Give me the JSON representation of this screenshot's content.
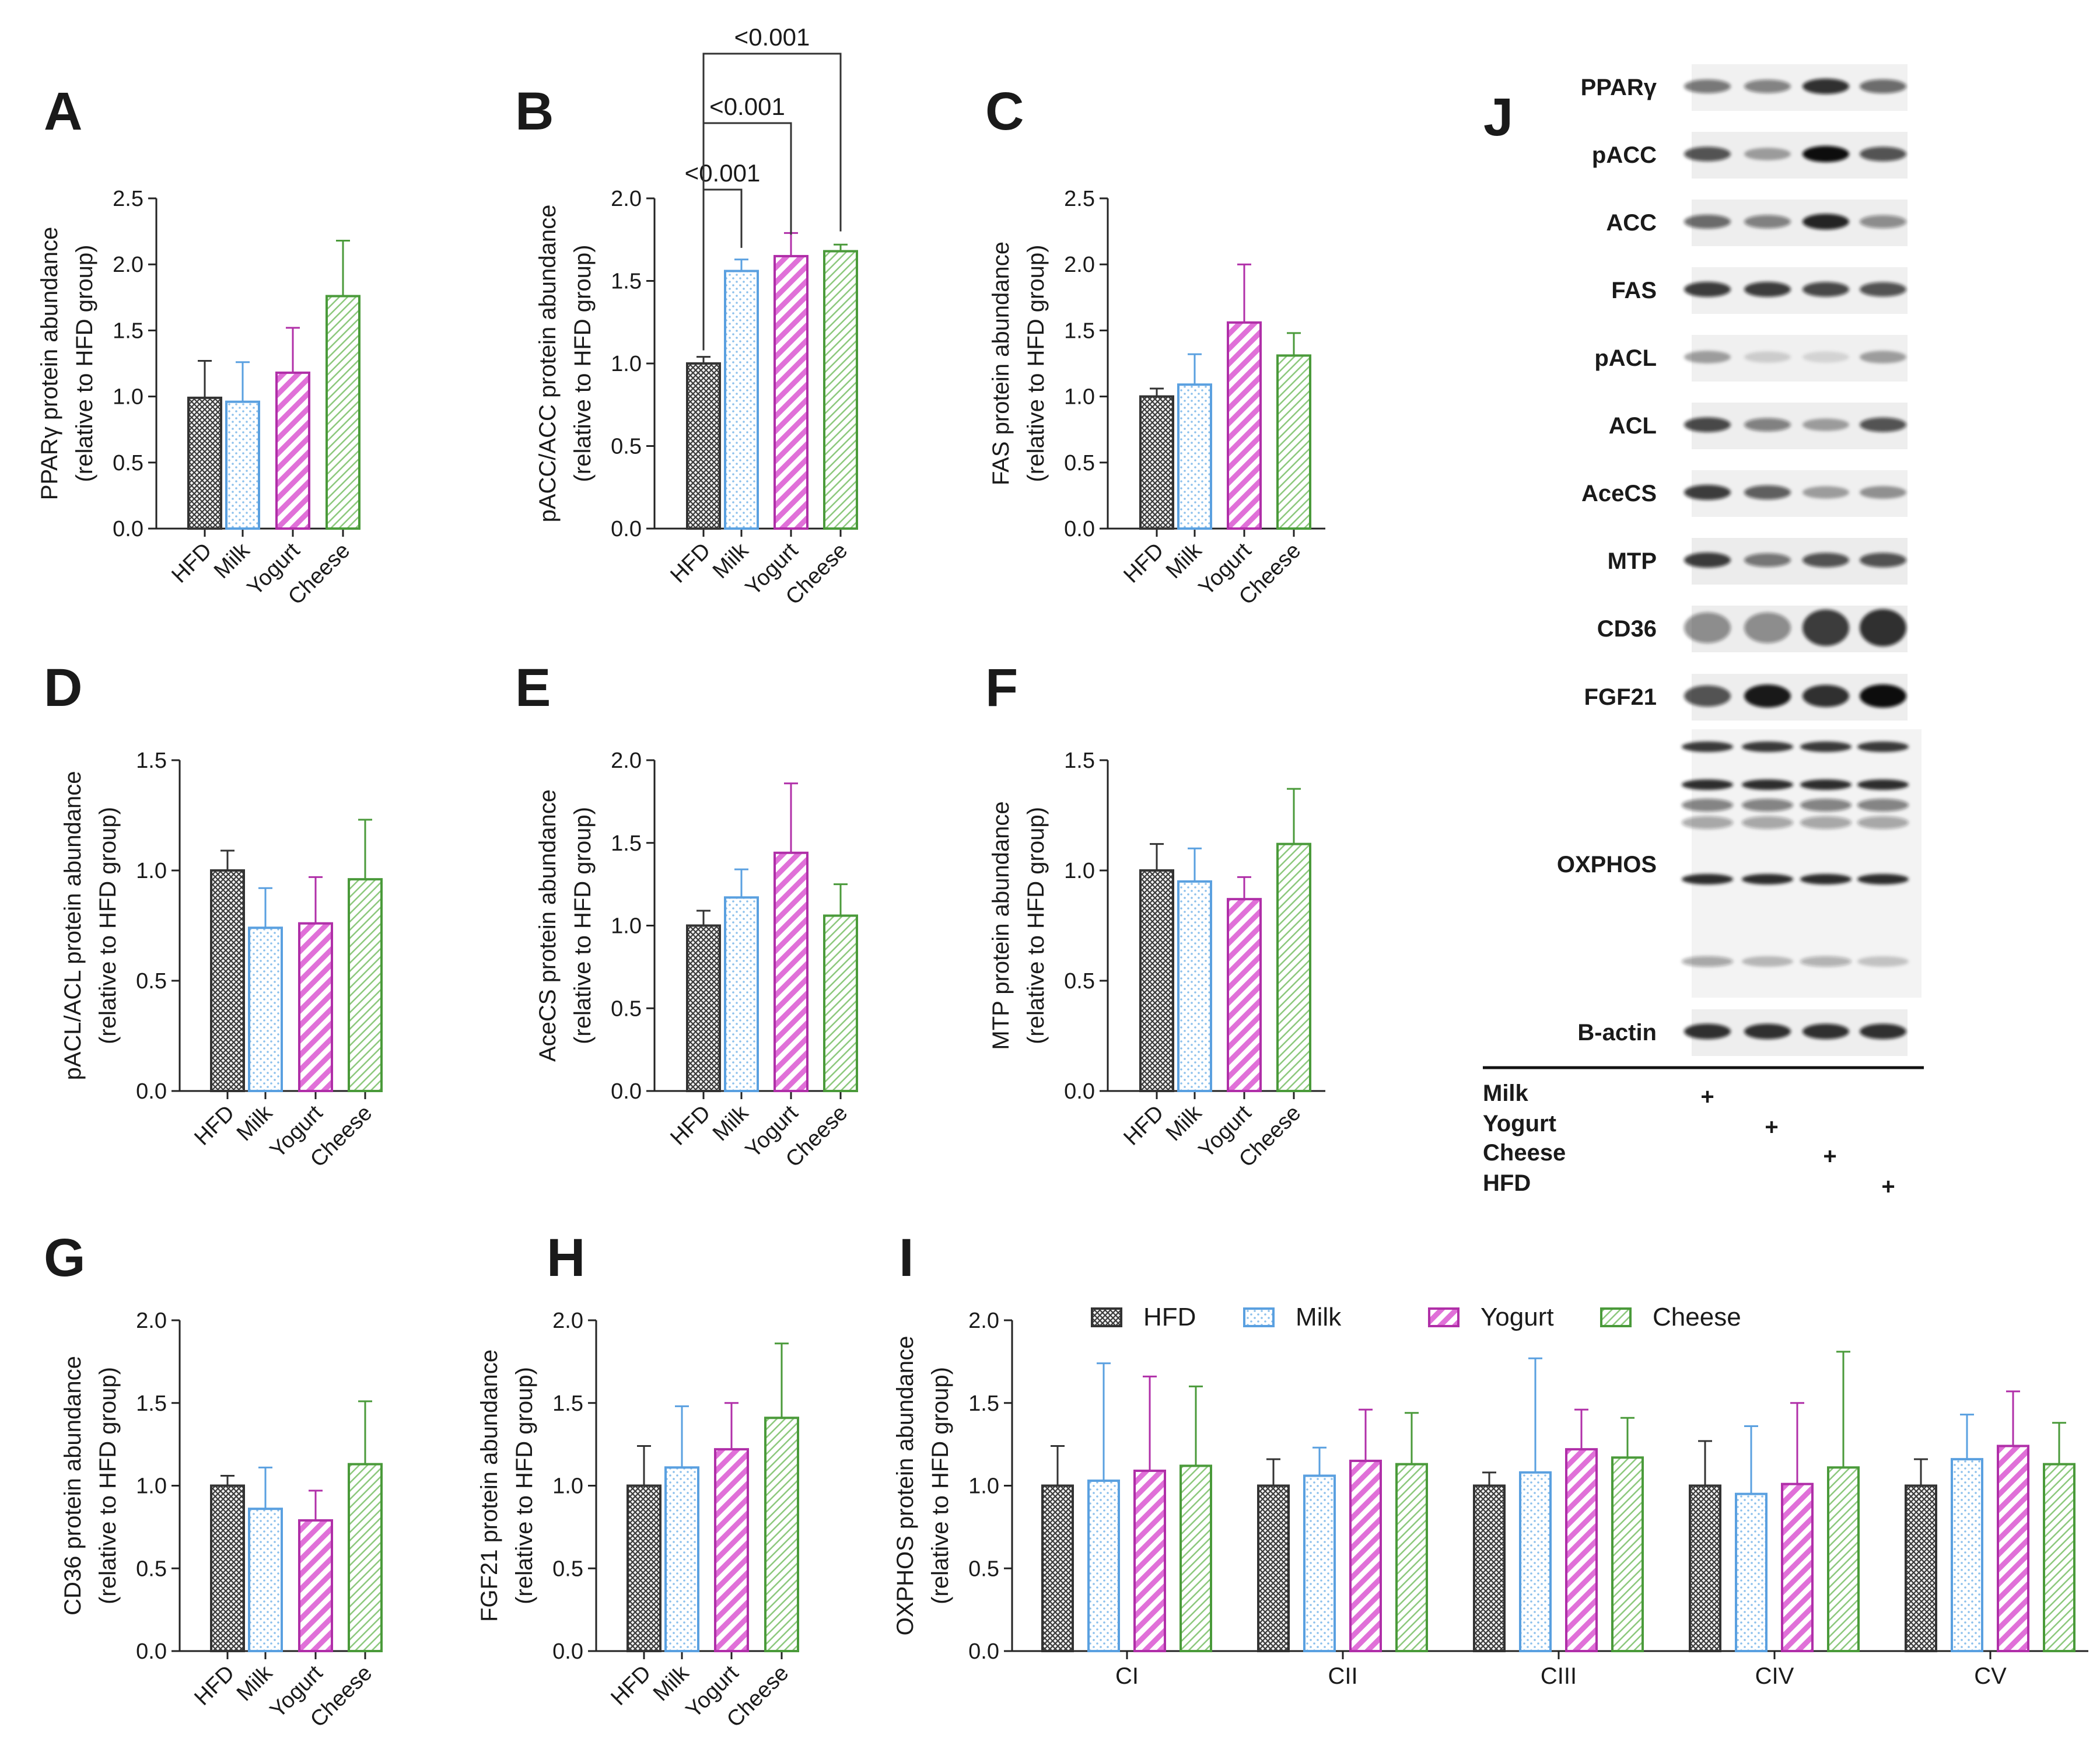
{
  "figure": {
    "groups": [
      "HFD",
      "Milk",
      "Yogurt",
      "Cheese"
    ],
    "colors": {
      "HFD": "#333333",
      "Milk": "#5aa0e0",
      "Yogurt": "#b02fa8",
      "Cheese": "#4a9a3a"
    },
    "legend": [
      "HFD",
      "Milk",
      "Yogurt",
      "Cheese"
    ]
  },
  "chart_data": [
    {
      "panel": "A",
      "type": "bar",
      "ylabel": "PPARγ protein abundance",
      "ylabel2": "(relative to HFD group)",
      "categories": [
        "HFD",
        "Milk",
        "Yogurt",
        "Cheese"
      ],
      "values": [
        0.99,
        0.96,
        1.18,
        1.76
      ],
      "errors": [
        0.28,
        0.3,
        0.34,
        0.42
      ],
      "ylim": [
        0,
        2.5
      ],
      "ticks": [
        "0.0",
        "0.5",
        "1.0",
        "1.5",
        "2.0",
        "2.5"
      ]
    },
    {
      "panel": "B",
      "type": "bar",
      "ylabel": "pACC/ACC protein abundance",
      "ylabel2": "(relative to HFD group)",
      "categories": [
        "HFD",
        "Milk",
        "Yogurt",
        "Cheese"
      ],
      "values": [
        1.0,
        1.56,
        1.65,
        1.68
      ],
      "errors": [
        0.04,
        0.07,
        0.14,
        0.04
      ],
      "ylim": [
        0,
        2.0
      ],
      "ticks": [
        "0.0",
        "0.5",
        "1.0",
        "1.5",
        "2.0"
      ],
      "significance": [
        {
          "from": "HFD",
          "to": "Milk",
          "label": "<0.001"
        },
        {
          "from": "HFD",
          "to": "Yogurt",
          "label": "<0.001"
        },
        {
          "from": "HFD",
          "to": "Cheese",
          "label": "<0.001"
        }
      ]
    },
    {
      "panel": "C",
      "type": "bar",
      "ylabel": "FAS protein abundance",
      "ylabel2": "(relative to HFD group)",
      "categories": [
        "HFD",
        "Milk",
        "Yogurt",
        "Cheese"
      ],
      "values": [
        1.0,
        1.09,
        1.56,
        1.31
      ],
      "errors": [
        0.06,
        0.23,
        0.44,
        0.17
      ],
      "ylim": [
        0,
        2.5
      ],
      "ticks": [
        "0.0",
        "0.5",
        "1.0",
        "1.5",
        "2.0",
        "2.5"
      ]
    },
    {
      "panel": "D",
      "type": "bar",
      "ylabel": "pACL/ACL protein abundance",
      "ylabel2": "(relative to HFD group)",
      "categories": [
        "HFD",
        "Milk",
        "Yogurt",
        "Cheese"
      ],
      "values": [
        1.0,
        0.74,
        0.76,
        0.96
      ],
      "errors": [
        0.09,
        0.18,
        0.21,
        0.27
      ],
      "ylim": [
        0,
        1.5
      ],
      "ticks": [
        "0.0",
        "0.5",
        "1.0",
        "1.5"
      ]
    },
    {
      "panel": "E",
      "type": "bar",
      "ylabel": "AceCS protein abundance",
      "ylabel2": "(relative to HFD group)",
      "categories": [
        "HFD",
        "Milk",
        "Yogurt",
        "Cheese"
      ],
      "values": [
        1.0,
        1.17,
        1.44,
        1.06
      ],
      "errors": [
        0.09,
        0.17,
        0.42,
        0.19
      ],
      "ylim": [
        0,
        2.0
      ],
      "ticks": [
        "0.0",
        "0.5",
        "1.0",
        "1.5",
        "2.0"
      ]
    },
    {
      "panel": "F",
      "type": "bar",
      "ylabel": "MTP protein abundance",
      "ylabel2": "(relative to HFD group)",
      "categories": [
        "HFD",
        "Milk",
        "Yogurt",
        "Cheese"
      ],
      "values": [
        1.0,
        0.95,
        0.87,
        1.12
      ],
      "errors": [
        0.12,
        0.15,
        0.1,
        0.25
      ],
      "ylim": [
        0,
        1.5
      ],
      "ticks": [
        "0.0",
        "0.5",
        "1.0",
        "1.5"
      ]
    },
    {
      "panel": "G",
      "type": "bar",
      "ylabel": "CD36 protein abundance",
      "ylabel2": "(relative to HFD group)",
      "categories": [
        "HFD",
        "Milk",
        "Yogurt",
        "Cheese"
      ],
      "values": [
        1.0,
        0.86,
        0.79,
        1.13
      ],
      "errors": [
        0.06,
        0.25,
        0.18,
        0.38
      ],
      "ylim": [
        0,
        2.0
      ],
      "ticks": [
        "0.0",
        "0.5",
        "1.0",
        "1.5",
        "2.0"
      ]
    },
    {
      "panel": "H",
      "type": "bar",
      "ylabel": "FGF21 protein abundance",
      "ylabel2": "(relative to HFD group)",
      "categories": [
        "HFD",
        "Milk",
        "Yogurt",
        "Cheese"
      ],
      "values": [
        1.0,
        1.11,
        1.22,
        1.41
      ],
      "errors": [
        0.24,
        0.37,
        0.28,
        0.45
      ],
      "ylim": [
        0,
        2.0
      ],
      "ticks": [
        "0.0",
        "0.5",
        "1.0",
        "1.5",
        "2.0"
      ]
    },
    {
      "panel": "I",
      "type": "bar",
      "ylabel": "OXPHOS protein abundance",
      "ylabel2": "(relative to HFD group)",
      "categories": [
        "CI",
        "CII",
        "CIII",
        "CIV",
        "CV"
      ],
      "series": [
        {
          "name": "HFD",
          "values": [
            1.0,
            1.0,
            1.0,
            1.0,
            1.0
          ],
          "errors": [
            0.24,
            0.16,
            0.08,
            0.27,
            0.16
          ]
        },
        {
          "name": "Milk",
          "values": [
            1.03,
            1.06,
            1.08,
            0.95,
            1.16
          ],
          "errors": [
            0.71,
            0.17,
            0.69,
            0.41,
            0.27
          ]
        },
        {
          "name": "Yogurt",
          "values": [
            1.09,
            1.15,
            1.22,
            1.01,
            1.24
          ],
          "errors": [
            0.57,
            0.31,
            0.24,
            0.49,
            0.33
          ]
        },
        {
          "name": "Cheese",
          "values": [
            1.12,
            1.13,
            1.17,
            1.11,
            1.13
          ],
          "errors": [
            0.48,
            0.31,
            0.24,
            0.7,
            0.25
          ]
        }
      ],
      "ylim": [
        0,
        2.0
      ],
      "ticks": [
        "0.0",
        "0.5",
        "1.0",
        "1.5",
        "2.0"
      ]
    }
  ],
  "blot": {
    "panel": "J",
    "rows": [
      "PPARγ",
      "pACC",
      "ACC",
      "FAS",
      "pACL",
      "ACL",
      "AceCS",
      "MTP",
      "CD36",
      "FGF21",
      "OXPHOS",
      "B-actin"
    ],
    "conditions": [
      "Milk",
      "Yogurt",
      "Cheese",
      "HFD"
    ],
    "plus": "+"
  }
}
